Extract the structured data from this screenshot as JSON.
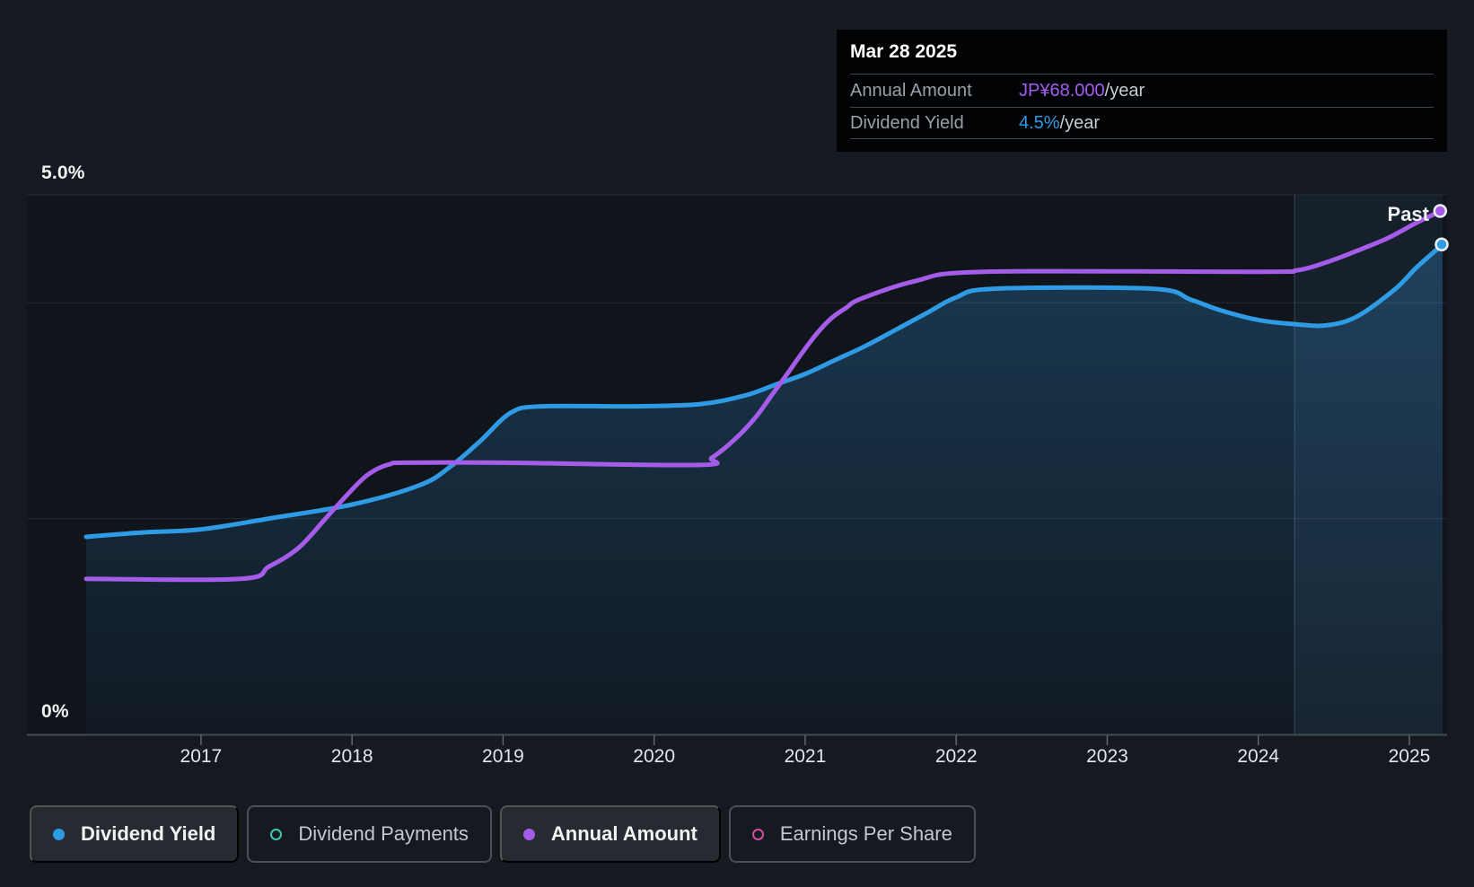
{
  "tooltip": {
    "date": "Mar 28 2025",
    "rows": [
      {
        "label": "Annual Amount",
        "value": "JP¥68.000",
        "suffix": "/year",
        "value_color": "#a55cf2"
      },
      {
        "label": "Dividend Yield",
        "value": "4.5%",
        "suffix": "/year",
        "value_color": "#2e9be4"
      }
    ]
  },
  "axis": {
    "y_top_label": "5.0%",
    "y_bottom_label": "0%",
    "x_ticks": [
      "2017",
      "2018",
      "2019",
      "2020",
      "2021",
      "2022",
      "2023",
      "2024",
      "2025"
    ]
  },
  "past_label": "Past",
  "legend": {
    "items": [
      {
        "label": "Dividend Yield",
        "marker": "dot",
        "color": "#2e9be4",
        "active": true
      },
      {
        "label": "Dividend Payments",
        "marker": "ring",
        "color": "#3fc6b5",
        "active": false
      },
      {
        "label": "Annual Amount",
        "marker": "dot",
        "color": "#a55ce8",
        "active": true
      },
      {
        "label": "Earnings Per Share",
        "marker": "ring",
        "color": "#d04f9d",
        "active": false
      }
    ]
  },
  "colors": {
    "page_bg": "#151a21",
    "plot_bg": "#10151c",
    "blue_line": "#2e9be4",
    "purple_line": "#a55ce8",
    "area_fill_rgb": "47,140,205",
    "past_band": "rgba(105,170,235,0.08)",
    "gridline": "rgba(200,218,235,0.10)",
    "axis_line": "#454b54",
    "tick": "#60666f",
    "year_label": "#e2e5ea",
    "dot_ring": "#e9edf2",
    "divider": "rgba(150,180,212,0.30)"
  },
  "chart_data": {
    "type": "line",
    "title": "Dividend history: yield and annual amount over time",
    "x_range": [
      2016.24,
      2025.22
    ],
    "past_divider_year": 2024.24,
    "percent_axis": {
      "min": 0,
      "max": 5.0,
      "gridlines_pct": [
        5.0,
        4.0,
        2.0
      ],
      "top_label": "5.0%",
      "bottom_label": "0%"
    },
    "amount_axis": {
      "min": 0,
      "max": 70.1,
      "unit": "JP¥"
    },
    "x_tick_years": [
      2017,
      2018,
      2019,
      2020,
      2021,
      2022,
      2023,
      2024,
      2025
    ],
    "legend_position": "bottom",
    "grid": "horizontal-only",
    "series": [
      {
        "name": "Dividend Yield",
        "axis": "percent",
        "unit": "%",
        "color": "#2e9be4",
        "has_area_fill": true,
        "end_marker": true,
        "final_value_label": "4.5%/year",
        "points": [
          [
            2016.24,
            1.83
          ],
          [
            2016.6,
            1.87
          ],
          [
            2017.0,
            1.9
          ],
          [
            2017.45,
            2.0
          ],
          [
            2018.0,
            2.13
          ],
          [
            2018.45,
            2.31
          ],
          [
            2018.65,
            2.48
          ],
          [
            2018.85,
            2.72
          ],
          [
            2019.05,
            2.98
          ],
          [
            2019.25,
            3.04
          ],
          [
            2019.85,
            3.04
          ],
          [
            2020.3,
            3.06
          ],
          [
            2020.6,
            3.14
          ],
          [
            2020.8,
            3.24
          ],
          [
            2021.0,
            3.34
          ],
          [
            2021.2,
            3.47
          ],
          [
            2021.4,
            3.6
          ],
          [
            2021.6,
            3.75
          ],
          [
            2021.8,
            3.9
          ],
          [
            2022.0,
            4.05
          ],
          [
            2022.25,
            4.13
          ],
          [
            2023.3,
            4.13
          ],
          [
            2023.55,
            4.03
          ],
          [
            2023.75,
            3.93
          ],
          [
            2024.0,
            3.84
          ],
          [
            2024.25,
            3.8
          ],
          [
            2024.45,
            3.79
          ],
          [
            2024.65,
            3.87
          ],
          [
            2024.9,
            4.12
          ],
          [
            2025.05,
            4.33
          ],
          [
            2025.22,
            4.54
          ]
        ]
      },
      {
        "name": "Annual Amount",
        "axis": "amount",
        "unit": "JP¥/year",
        "color": "#a55ce8",
        "has_area_fill": false,
        "end_marker": true,
        "final_value_label": "JP¥68.000/year",
        "points": [
          [
            2016.24,
            20.2
          ],
          [
            2017.26,
            20.2
          ],
          [
            2017.45,
            21.8
          ],
          [
            2017.65,
            24.3
          ],
          [
            2017.85,
            28.6
          ],
          [
            2018.05,
            32.8
          ],
          [
            2018.15,
            34.3
          ],
          [
            2018.25,
            35.1
          ],
          [
            2018.35,
            35.3
          ],
          [
            2019.0,
            35.3
          ],
          [
            2020.3,
            35.0
          ],
          [
            2020.38,
            35.9
          ],
          [
            2020.48,
            37.4
          ],
          [
            2020.58,
            39.2
          ],
          [
            2020.68,
            41.4
          ],
          [
            2020.78,
            44.1
          ],
          [
            2020.88,
            46.8
          ],
          [
            2020.97,
            49.3
          ],
          [
            2021.07,
            51.9
          ],
          [
            2021.17,
            54.0
          ],
          [
            2021.27,
            55.4
          ],
          [
            2021.37,
            56.6
          ],
          [
            2021.73,
            58.9
          ],
          [
            2022.18,
            60.1
          ],
          [
            2024.0,
            60.1
          ],
          [
            2024.26,
            60.3
          ],
          [
            2024.46,
            61.4
          ],
          [
            2024.65,
            62.8
          ],
          [
            2024.86,
            64.5
          ],
          [
            2025.05,
            66.5
          ],
          [
            2025.21,
            68.0
          ]
        ]
      }
    ]
  }
}
